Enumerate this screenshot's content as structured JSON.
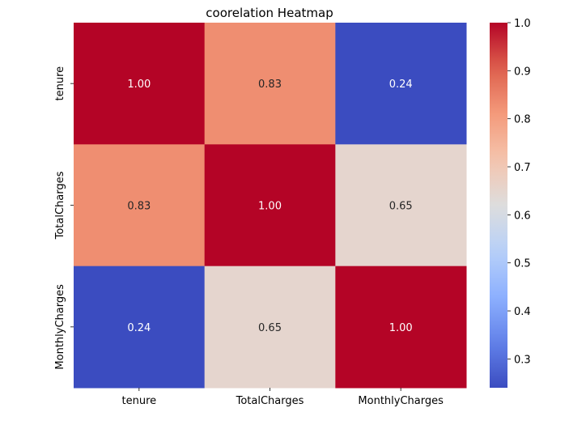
{
  "chart_data": {
    "type": "heatmap",
    "title": "coorelation Heatmap",
    "xlabel": "",
    "ylabel": "",
    "x_categories": [
      "tenure",
      "TotalCharges",
      "MonthlyCharges"
    ],
    "y_categories": [
      "tenure",
      "TotalCharges",
      "MonthlyCharges"
    ],
    "values": [
      [
        1.0,
        0.83,
        0.24
      ],
      [
        0.83,
        1.0,
        0.65
      ],
      [
        0.24,
        0.65,
        1.0
      ]
    ],
    "value_labels": [
      [
        "1.00",
        "0.83",
        "0.24"
      ],
      [
        "0.83",
        "1.00",
        "0.65"
      ],
      [
        "0.24",
        "0.65",
        "1.00"
      ]
    ],
    "colormap": "coolwarm",
    "color_range": [
      0.24,
      1.0
    ],
    "colorbar_ticks": [
      {
        "value": 0.3,
        "label": "0.3"
      },
      {
        "value": 0.4,
        "label": "0.4"
      },
      {
        "value": 0.5,
        "label": "0.5"
      },
      {
        "value": 0.6,
        "label": "0.6"
      },
      {
        "value": 0.7,
        "label": "0.7"
      },
      {
        "value": 0.8,
        "label": "0.8"
      },
      {
        "value": 0.9,
        "label": "0.9"
      },
      {
        "value": 1.0,
        "label": "1.0"
      }
    ],
    "colors": {
      "low": "#3b4cc0",
      "mid": "#dddddd",
      "high": "#b40426",
      "text_dark": "#262626",
      "text_light": "#ffffff"
    }
  }
}
